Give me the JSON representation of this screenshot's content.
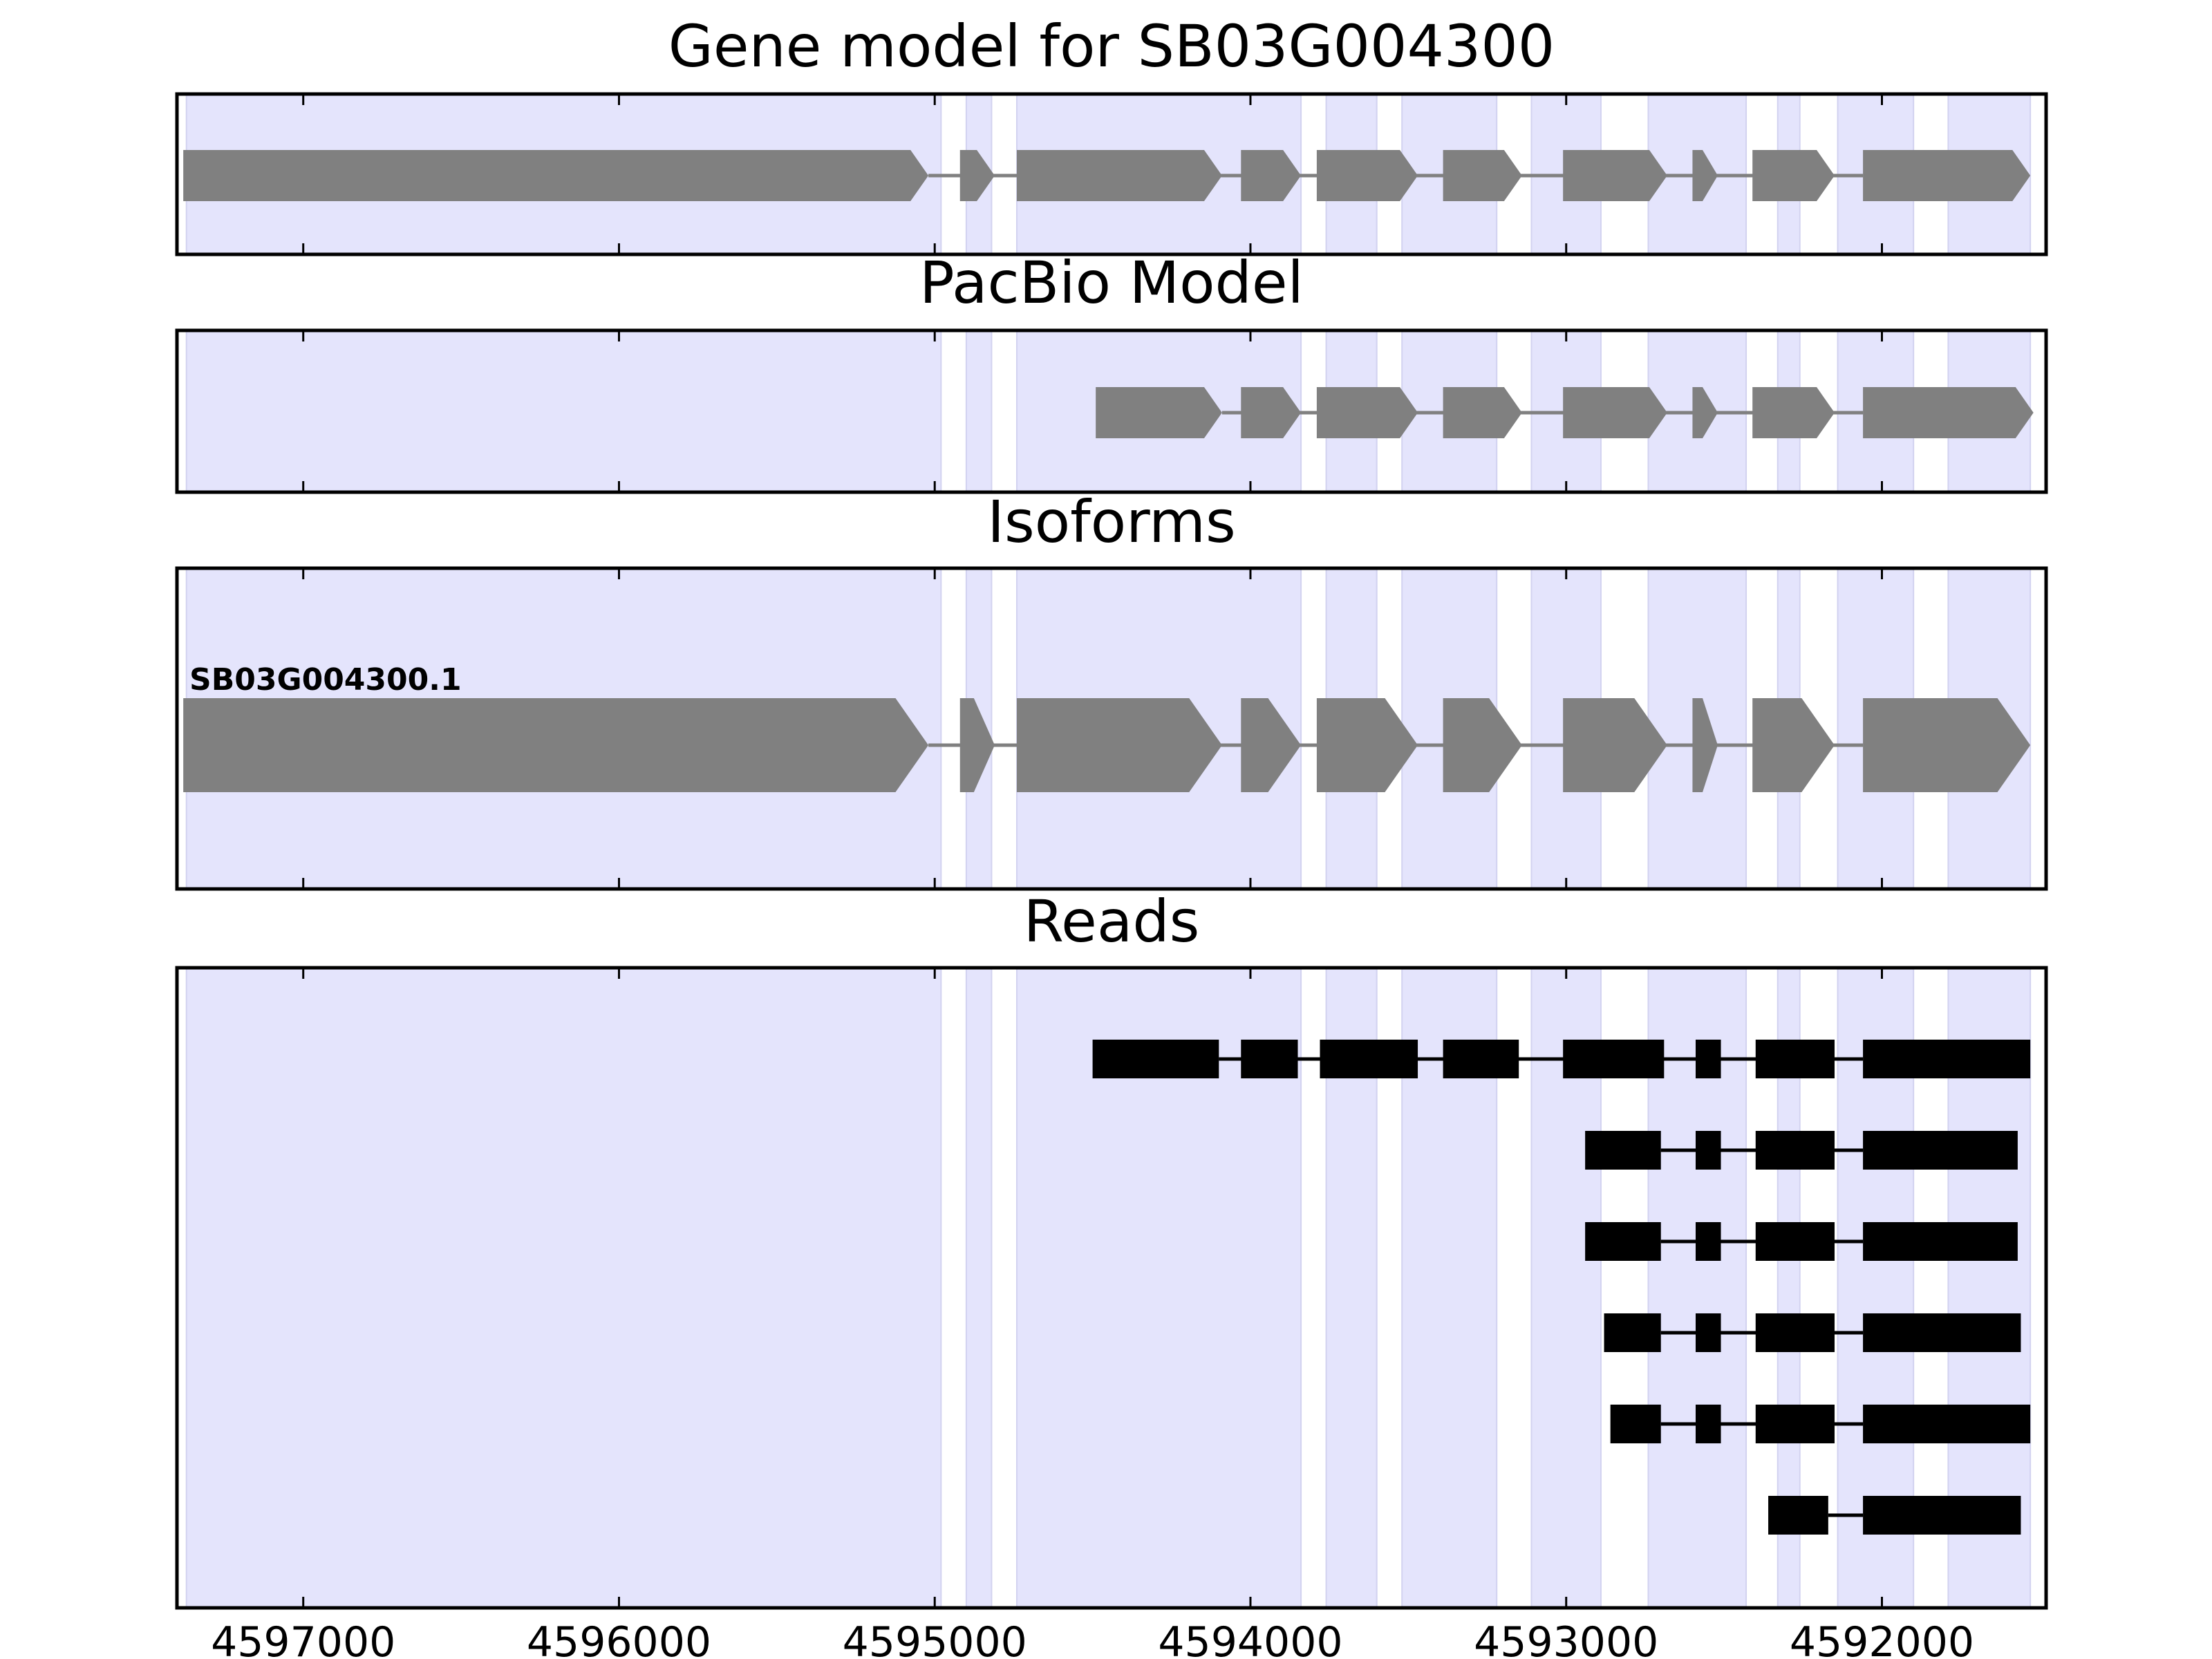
{
  "chart_data": {
    "type": "gene-track",
    "xaxis": {
      "reversed": true,
      "range": [
        4597400,
        4591480
      ],
      "ticks": [
        {
          "value": 4597000,
          "label": "4597000"
        },
        {
          "value": 4596000,
          "label": "4596000"
        },
        {
          "value": 4595000,
          "label": "4595000"
        },
        {
          "value": 4594000,
          "label": "4594000"
        },
        {
          "value": 4593000,
          "label": "4593000"
        },
        {
          "value": 4592000,
          "label": "4592000"
        }
      ]
    },
    "shaded_exon_regions": [
      [
        4597370,
        4594980
      ],
      [
        4594900,
        4594820
      ],
      [
        4594740,
        4593840
      ],
      [
        4593760,
        4593600
      ],
      [
        4593520,
        4593220
      ],
      [
        4593110,
        4592890
      ],
      [
        4592740,
        4592430
      ],
      [
        4592330,
        4592260
      ],
      [
        4592140,
        4591900
      ],
      [
        4591790,
        4591530
      ]
    ],
    "panels": [
      {
        "title": "Gene model for SB03G004300",
        "kind": "model",
        "tracks": [
          {
            "label": "",
            "exons": [
              [
                4597380,
                4595020
              ],
              [
                4594920,
                4594810
              ],
              [
                4594740,
                4594090
              ],
              [
                4594030,
                4593840
              ],
              [
                4593790,
                4593470
              ],
              [
                4593390,
                4593140
              ],
              [
                4593010,
                4592680
              ],
              [
                4592600,
                4592520
              ],
              [
                4592410,
                4592150
              ],
              [
                4592060,
                4591530
              ]
            ]
          }
        ]
      },
      {
        "title": "PacBio Model",
        "kind": "model",
        "tracks": [
          {
            "label": "",
            "exons": [
              [
                4594490,
                4594090
              ],
              [
                4594030,
                4593840
              ],
              [
                4593790,
                4593470
              ],
              [
                4593390,
                4593140
              ],
              [
                4593010,
                4592680
              ],
              [
                4592600,
                4592520
              ],
              [
                4592410,
                4592150
              ],
              [
                4592060,
                4591520
              ]
            ]
          }
        ]
      },
      {
        "title": "Isoforms",
        "kind": "model",
        "tracks": [
          {
            "label": "SB03G004300.1",
            "exons": [
              [
                4597380,
                4595020
              ],
              [
                4594920,
                4594810
              ],
              [
                4594740,
                4594090
              ],
              [
                4594030,
                4593840
              ],
              [
                4593790,
                4593470
              ],
              [
                4593390,
                4593140
              ],
              [
                4593010,
                4592680
              ],
              [
                4592600,
                4592520
              ],
              [
                4592410,
                4592150
              ],
              [
                4592060,
                4591530
              ]
            ]
          }
        ]
      },
      {
        "title": "Reads",
        "kind": "reads",
        "tracks": [
          {
            "label": "",
            "exons": [
              [
                4594500,
                4594100
              ],
              [
                4594030,
                4593850
              ],
              [
                4593780,
                4593470
              ],
              [
                4593390,
                4593150
              ],
              [
                4593010,
                4592690
              ],
              [
                4592590,
                4592510
              ],
              [
                4592400,
                4592150
              ],
              [
                4592060,
                4591530
              ]
            ]
          },
          {
            "label": "",
            "exons": [
              [
                4592940,
                4592700
              ],
              [
                4592590,
                4592510
              ],
              [
                4592400,
                4592150
              ],
              [
                4592060,
                4591570
              ]
            ]
          },
          {
            "label": "",
            "exons": [
              [
                4592940,
                4592700
              ],
              [
                4592590,
                4592510
              ],
              [
                4592400,
                4592150
              ],
              [
                4592060,
                4591570
              ]
            ]
          },
          {
            "label": "",
            "exons": [
              [
                4592880,
                4592700
              ],
              [
                4592590,
                4592510
              ],
              [
                4592400,
                4592150
              ],
              [
                4592060,
                4591560
              ]
            ]
          },
          {
            "label": "",
            "exons": [
              [
                4592860,
                4592700
              ],
              [
                4592590,
                4592510
              ],
              [
                4592400,
                4592150
              ],
              [
                4592060,
                4591530
              ]
            ]
          },
          {
            "label": "",
            "exons": [
              [
                4592360,
                4592170
              ],
              [
                4592060,
                4591560
              ]
            ]
          }
        ]
      }
    ]
  },
  "colors": {
    "shade": "#e4e4fc",
    "shade_edge": "#d2d2f0",
    "model_exon": "#808080",
    "intron_line": "#808080",
    "read_exon": "#000000",
    "frame": "#000000"
  }
}
